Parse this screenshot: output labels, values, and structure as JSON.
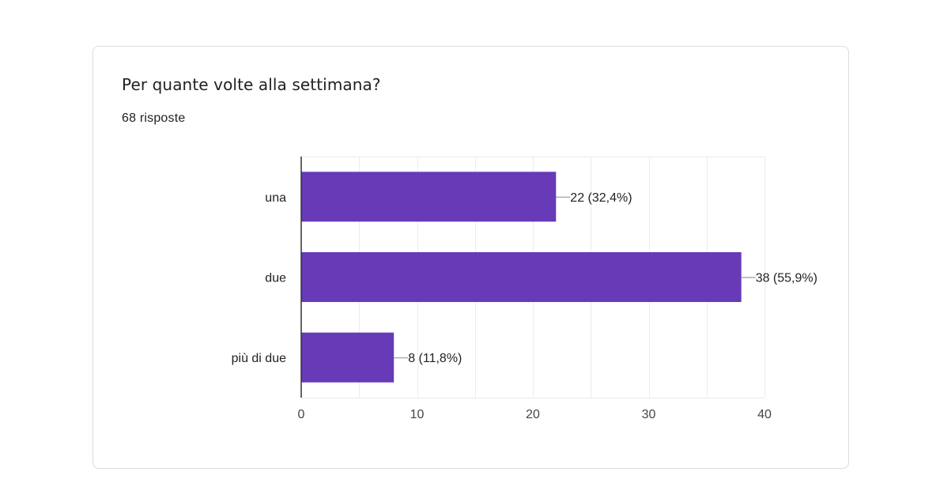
{
  "card": {
    "title": "Per quante volte alla settimana?",
    "subtitle": "68 risposte"
  },
  "chart_data": {
    "type": "bar",
    "orientation": "horizontal",
    "categories": [
      "una",
      "due",
      "più di due"
    ],
    "values": [
      22,
      38,
      8
    ],
    "data_labels": [
      "22 (32,4%)",
      "38 (55,9%)",
      "8 (11,8%)"
    ],
    "xlim": [
      0,
      40
    ],
    "xticks": [
      0,
      10,
      20,
      30,
      40
    ],
    "grid": true,
    "bar_color": "#673ab7"
  }
}
